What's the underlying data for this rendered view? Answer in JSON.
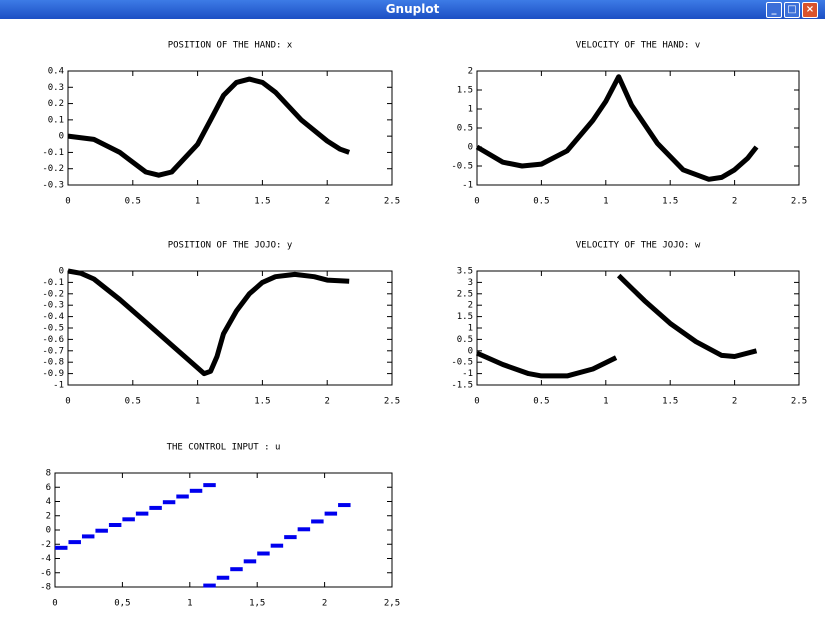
{
  "window": {
    "title": "Gnuplot"
  },
  "chart_data": [
    {
      "type": "line",
      "title": "POSITION OF THE HAND: x",
      "color": "#000000",
      "x": [
        0,
        0.2,
        0.4,
        0.6,
        0.7,
        0.8,
        1.0,
        1.1,
        1.2,
        1.3,
        1.4,
        1.5,
        1.6,
        1.8,
        2.0,
        2.1,
        2.17
      ],
      "values": [
        0,
        -0.02,
        -0.1,
        -0.22,
        -0.24,
        -0.22,
        -0.05,
        0.1,
        0.25,
        0.33,
        0.35,
        0.33,
        0.27,
        0.1,
        -0.03,
        -0.08,
        -0.1
      ],
      "xlim": [
        0,
        2.5
      ],
      "xticks": [
        0,
        0.5,
        1,
        1.5,
        2,
        2.5
      ],
      "ylim": [
        -0.3,
        0.4
      ],
      "yticks": [
        0.4,
        0.3,
        0.2,
        0.1,
        0,
        -0.1,
        -0.2,
        -0.3
      ]
    },
    {
      "type": "line",
      "title": "VELOCITY OF THE HAND: v",
      "color": "#000000",
      "x": [
        0,
        0.2,
        0.35,
        0.5,
        0.7,
        0.9,
        1.0,
        1.1,
        1.2,
        1.4,
        1.6,
        1.8,
        1.9,
        2.0,
        2.1,
        2.17
      ],
      "values": [
        0,
        -0.4,
        -0.5,
        -0.45,
        -0.1,
        0.7,
        1.2,
        1.85,
        1.1,
        0.1,
        -0.6,
        -0.85,
        -0.8,
        -0.6,
        -0.3,
        0
      ],
      "xlim": [
        0,
        2.5
      ],
      "xticks": [
        0,
        0.5,
        1,
        1.5,
        2,
        2.5
      ],
      "ylim": [
        -1,
        2
      ],
      "yticks": [
        2,
        1.5,
        1,
        0.5,
        0,
        -0.5,
        -1
      ]
    },
    {
      "type": "line",
      "title": "POSITION OF THE JOJO: y",
      "color": "#000000",
      "x": [
        0,
        0.1,
        0.2,
        0.4,
        0.6,
        0.8,
        1.0,
        1.05,
        1.1,
        1.15,
        1.2,
        1.3,
        1.4,
        1.5,
        1.6,
        1.75,
        1.9,
        2.0,
        2.17
      ],
      "values": [
        0,
        -0.02,
        -0.07,
        -0.25,
        -0.45,
        -0.65,
        -0.85,
        -0.9,
        -0.88,
        -0.75,
        -0.55,
        -0.35,
        -0.2,
        -0.1,
        -0.05,
        -0.03,
        -0.05,
        -0.08,
        -0.09
      ],
      "xlim": [
        0,
        2.5
      ],
      "xticks": [
        0,
        0.5,
        1,
        1.5,
        2,
        2.5
      ],
      "ylim": [
        -1,
        0
      ],
      "yticks": [
        0,
        -0.1,
        -0.2,
        -0.3,
        -0.4,
        -0.5,
        -0.6,
        -0.7,
        -0.8,
        -0.9,
        -1
      ]
    },
    {
      "type": "line",
      "title": "VELOCITY OF THE JOJO: w",
      "color": "#000000",
      "x": [
        0,
        0.2,
        0.4,
        0.5,
        0.7,
        0.9,
        1.08,
        1.09,
        1.1,
        1.3,
        1.5,
        1.7,
        1.9,
        2.0,
        2.17
      ],
      "values": [
        -0.1,
        -0.6,
        -1.0,
        -1.1,
        -1.1,
        -0.8,
        -0.3,
        null,
        3.3,
        2.2,
        1.2,
        0.4,
        -0.2,
        -0.25,
        0
      ],
      "xlim": [
        0,
        2.5
      ],
      "xticks": [
        0,
        0.5,
        1,
        1.5,
        2,
        2.5
      ],
      "ylim": [
        -1.5,
        3.5
      ],
      "yticks": [
        3.5,
        3,
        2.5,
        2,
        1.5,
        1,
        0.5,
        0,
        -0.5,
        -1,
        -1.5
      ]
    },
    {
      "type": "step",
      "title": "THE CONTROL INPUT   : u",
      "color": "#0000ee",
      "x": [
        0,
        0.1,
        0.2,
        0.3,
        0.4,
        0.5,
        0.6,
        0.7,
        0.8,
        0.9,
        1.0,
        1.1,
        1.1,
        1.2,
        1.3,
        1.4,
        1.5,
        1.6,
        1.7,
        1.8,
        1.9,
        2.0,
        2.1
      ],
      "values": [
        -2.5,
        -1.7,
        -0.9,
        -0.1,
        0.7,
        1.5,
        2.3,
        3.1,
        3.9,
        4.7,
        5.5,
        6.3,
        -7.8,
        -6.7,
        -5.5,
        -4.4,
        -3.3,
        -2.2,
        -1.0,
        0.1,
        1.2,
        2.3,
        3.5
      ],
      "xlim": [
        0,
        2.5
      ],
      "xticks": [
        0,
        {
          "value": 0.5,
          "label": "0,5"
        },
        1,
        {
          "value": 1.5,
          "label": "1,5"
        },
        2,
        {
          "value": 2.5,
          "label": "2,5"
        }
      ],
      "ylim": [
        -8,
        8
      ],
      "yticks": [
        8,
        6,
        4,
        2,
        0,
        -2,
        -4,
        -6,
        -8
      ]
    }
  ]
}
